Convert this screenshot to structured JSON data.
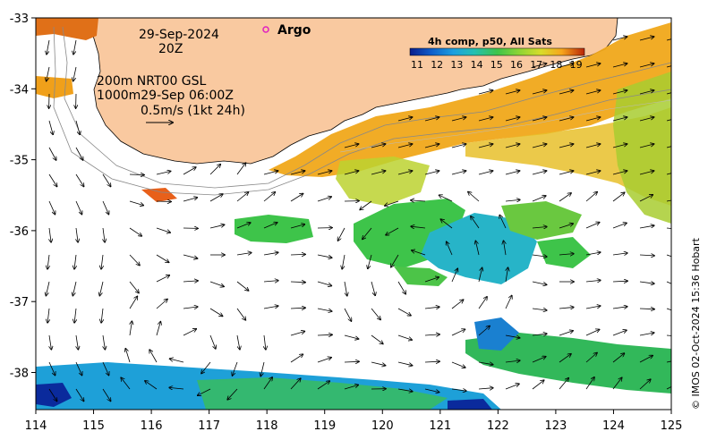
{
  "map": {
    "date_label": "29-Sep-2024",
    "time_label": "20Z",
    "argo_label": "Argo",
    "contour_label": "200m  NRT00 GSL",
    "contour_label2": "1000m29-Sep 06:00Z",
    "scale_label": "0.5m/s (1kt 24h)",
    "credit": "© IMOS 02-Oct-2024 15:36 Hobart",
    "colors": {
      "land": "#f9c9a0",
      "argo_marker": "#e020c0"
    }
  },
  "colorbar": {
    "title": "4h comp, p50, All Sats",
    "ticks": [
      "11",
      "12",
      "13",
      "14",
      "15",
      "16",
      "17",
      "18",
      "19"
    ],
    "colors": [
      "#0a1d8c",
      "#0f5cc9",
      "#1ea0e0",
      "#25c0b0",
      "#3ec44a",
      "#8ad435",
      "#d8dc2a",
      "#f7b51c",
      "#f08a10",
      "#b82508"
    ]
  },
  "axes": {
    "x_ticks": [
      "114",
      "115",
      "116",
      "117",
      "118",
      "119",
      "120",
      "121",
      "122",
      "123",
      "124",
      "125"
    ],
    "y_ticks": [
      "-33",
      "-34",
      "-35",
      "-36",
      "-37",
      "-38"
    ]
  }
}
